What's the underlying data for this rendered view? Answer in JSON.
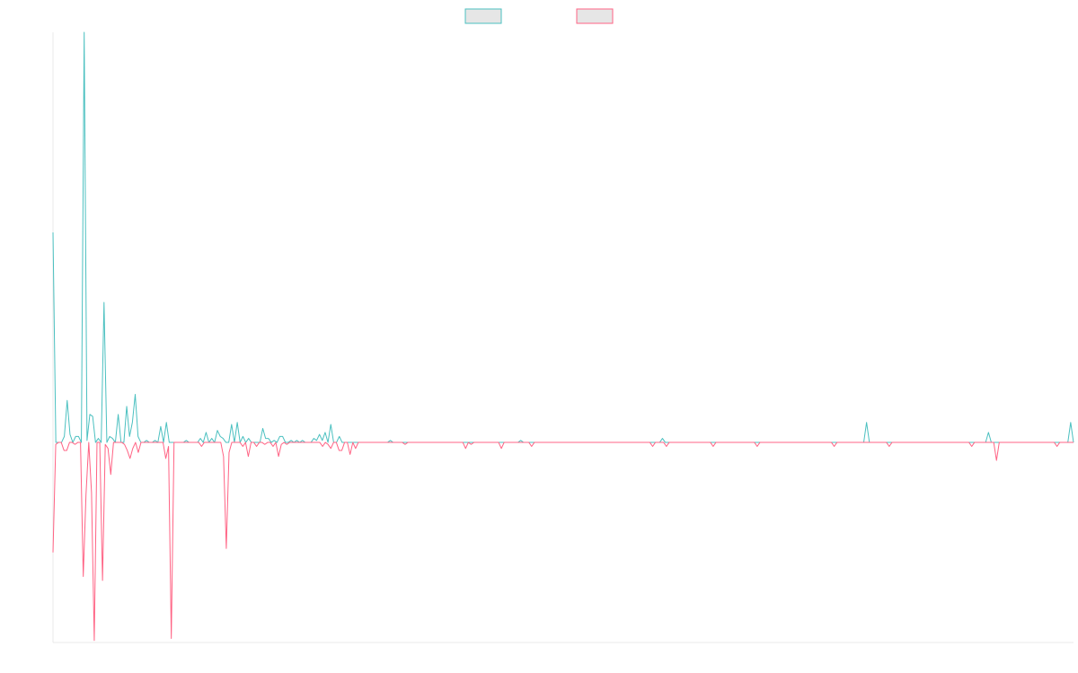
{
  "chart_data": {
    "type": "line",
    "title": "",
    "xlabel": "",
    "ylabel": "",
    "grid": false,
    "legend_position": "top-center",
    "axis_color": "#e8e8e8",
    "ylim": [
      -100,
      205
    ],
    "zero_line": 0,
    "series": [
      {
        "color": "#4bc0c0",
        "legend_fill": "#e6e6e6",
        "values": [
          105,
          0,
          0,
          0,
          3,
          21,
          4,
          0,
          3,
          3,
          0,
          205,
          1,
          14,
          13,
          0,
          2,
          0,
          70,
          0,
          3,
          2,
          0,
          14,
          0,
          0,
          18,
          3,
          10,
          24,
          3,
          0,
          0,
          1,
          0,
          0,
          1,
          0,
          8,
          0,
          10,
          0,
          0,
          0,
          0,
          0,
          0,
          1,
          0,
          0,
          0,
          0,
          2,
          0,
          5,
          0,
          2,
          0,
          6,
          3,
          2,
          0,
          0,
          9,
          0,
          10,
          0,
          3,
          0,
          2,
          0,
          0,
          0,
          0,
          7,
          2,
          2,
          0,
          1,
          0,
          3,
          3,
          0,
          0,
          1,
          0,
          1,
          0,
          1,
          0,
          0,
          0,
          2,
          1,
          4,
          1,
          5,
          0,
          9,
          0,
          0,
          3,
          0,
          0,
          0,
          0,
          0,
          0,
          0,
          0,
          0,
          0,
          0,
          0,
          0,
          0,
          0,
          0,
          0,
          1,
          0,
          0,
          0,
          0,
          0,
          0,
          0,
          0,
          0,
          0,
          0,
          0,
          0,
          0,
          0,
          0,
          0,
          0,
          0,
          0,
          0,
          0,
          0,
          0,
          0,
          0,
          0,
          0,
          0,
          0,
          0,
          0,
          0,
          0,
          0,
          0,
          0,
          0,
          0,
          0,
          0,
          0,
          0,
          0,
          0,
          1,
          0,
          0,
          0,
          0,
          0,
          0,
          0,
          0,
          0,
          0,
          0,
          0,
          0,
          0,
          0,
          0,
          0,
          0,
          0,
          0,
          0,
          0,
          0,
          0,
          0,
          0,
          0,
          0,
          0,
          0,
          0,
          0,
          0,
          0,
          0,
          0,
          0,
          0,
          0,
          0,
          0,
          0,
          0,
          0,
          0,
          0,
          0,
          0,
          0,
          2,
          0,
          0,
          0,
          0,
          0,
          0,
          0,
          0,
          0,
          0,
          0,
          0,
          0,
          0,
          0,
          0,
          0,
          0,
          0,
          0,
          0,
          0,
          0,
          0,
          0,
          0,
          0,
          0,
          0,
          0,
          0,
          0,
          0,
          0,
          0,
          0,
          0,
          0,
          0,
          0,
          0,
          0,
          0,
          0,
          0,
          0,
          0,
          0,
          0,
          0,
          0,
          0,
          0,
          0,
          0,
          0,
          0,
          0,
          0,
          0,
          0,
          0,
          0,
          0,
          0,
          0,
          0,
          0,
          0,
          0,
          0,
          10,
          0,
          0,
          0,
          0,
          0,
          0,
          0,
          0,
          0,
          0,
          0,
          0,
          0,
          0,
          0,
          0,
          0,
          0,
          0,
          0,
          0,
          0,
          0,
          0,
          0,
          0,
          0,
          0,
          0,
          0,
          0,
          0,
          0,
          0,
          0,
          0,
          0,
          0,
          0,
          0,
          0,
          0,
          5,
          0,
          0,
          0,
          0,
          0,
          0,
          0,
          0,
          0,
          0,
          0,
          0,
          0,
          0,
          0,
          0,
          0,
          0,
          0,
          0,
          0,
          0,
          0,
          0,
          0,
          0,
          0,
          0,
          10,
          0
        ]
      },
      {
        "color": "#ff6384",
        "legend_fill": "#e6e6e6",
        "values": [
          -55,
          -1,
          0,
          0,
          -4,
          -4,
          0,
          0,
          -1,
          0,
          0,
          -67,
          -26,
          0,
          -25,
          -99,
          0,
          0,
          -69,
          -1,
          -3,
          -16,
          0,
          0,
          0,
          0,
          -1,
          -4,
          -8,
          -3,
          0,
          -5,
          0,
          0,
          0,
          0,
          0,
          0,
          0,
          0,
          0,
          -8,
          -2,
          -98,
          0,
          0,
          0,
          0,
          0,
          0,
          0,
          0,
          0,
          0,
          -2,
          0,
          0,
          0,
          0,
          0,
          0,
          0,
          -7,
          -53,
          -5,
          0,
          0,
          0,
          0,
          -2,
          0,
          -7,
          0,
          0,
          -2,
          0,
          0,
          -1,
          0,
          0,
          -2,
          0,
          -7,
          -1,
          0,
          -1,
          0,
          0,
          0,
          0,
          0,
          0,
          0,
          0,
          0,
          0,
          0,
          0,
          -2,
          0,
          -1,
          -3,
          0,
          0,
          -4,
          -4,
          0,
          0,
          -6,
          0,
          -3,
          0,
          0,
          0,
          0,
          0,
          0,
          0,
          0,
          0,
          0,
          0,
          0,
          0,
          0,
          0,
          0,
          0,
          -1,
          0,
          0,
          0,
          0,
          0,
          0,
          0,
          0,
          0,
          0,
          0,
          0,
          0,
          0,
          0,
          0,
          0,
          0,
          0,
          0,
          0,
          -3,
          0,
          -1,
          0,
          0,
          0,
          0,
          0,
          0,
          0,
          0,
          0,
          0,
          -3,
          0,
          0,
          0,
          0,
          0,
          0,
          0,
          0,
          0,
          0,
          -2,
          0,
          0,
          0,
          0,
          0,
          0,
          0,
          0,
          0,
          0,
          0,
          0,
          0,
          0,
          0,
          0,
          0,
          0,
          0,
          0,
          0,
          0,
          0,
          0,
          0,
          0,
          0,
          0,
          0,
          0,
          0,
          0,
          0,
          0,
          0,
          0,
          0,
          0,
          0,
          0,
          0,
          0,
          0,
          -2,
          0,
          0,
          0,
          0,
          -2,
          0,
          0,
          0,
          0,
          0,
          0,
          0,
          0,
          0,
          0,
          0,
          0,
          0,
          0,
          0,
          0,
          -2,
          0,
          0,
          0,
          0,
          0,
          0,
          0,
          0,
          0,
          0,
          0,
          0,
          0,
          0,
          0,
          -2,
          0,
          0,
          0,
          0,
          0,
          0,
          0,
          0,
          0,
          0,
          0,
          0,
          0,
          0,
          0,
          0,
          0,
          0,
          0,
          0,
          0,
          0,
          0,
          0,
          0,
          0,
          0,
          -2,
          0,
          0,
          0,
          0,
          0,
          0,
          0,
          0,
          0,
          0,
          0,
          0,
          0,
          0,
          0,
          0,
          0,
          0,
          0,
          -2,
          0,
          0,
          0,
          0,
          0,
          0,
          0,
          0,
          0,
          0,
          0,
          0,
          0,
          0,
          0,
          0,
          0,
          0,
          0,
          0,
          0,
          0,
          0,
          0,
          0,
          0,
          0,
          0,
          0,
          -2,
          0,
          0,
          0,
          0,
          0,
          0,
          0,
          0,
          -9,
          0,
          0,
          0,
          0,
          0,
          0,
          0,
          0,
          0,
          0,
          0,
          0,
          0,
          0,
          0,
          0,
          0,
          0,
          0,
          0,
          0,
          -2,
          0,
          0,
          0,
          0,
          0,
          0
        ]
      }
    ]
  }
}
